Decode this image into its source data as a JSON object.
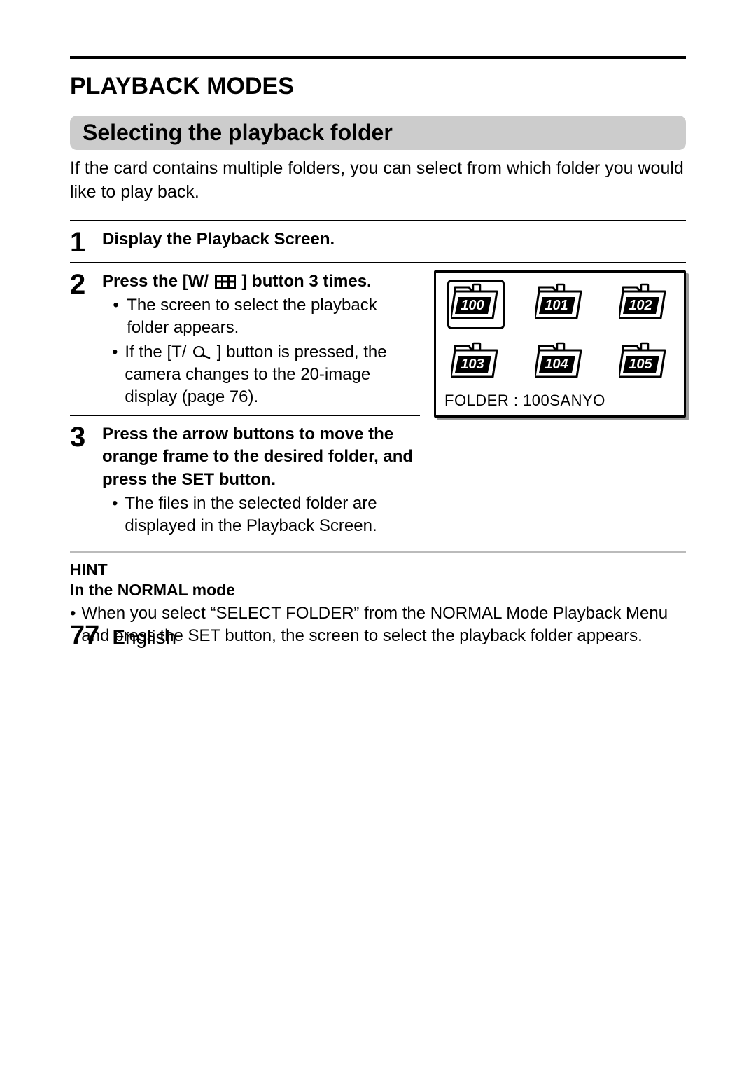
{
  "title": "PLAYBACK MODES",
  "subtitle": "Selecting the playback folder",
  "intro": "If the card contains multiple folders, you can select from which folder you would like to play back.",
  "steps": {
    "s1": {
      "num": "1",
      "head": "Display the Playback Screen."
    },
    "s2": {
      "num": "2",
      "head_pre": "Press the [W/",
      "head_post": "] button 3 times.",
      "b1": "The screen to select the playback folder appears.",
      "b2_pre": "If the [T/",
      "b2_post": "] button is pressed, the camera changes to the 20-image display  (page 76)."
    },
    "s3": {
      "num": "3",
      "head": "Press the arrow buttons to move the orange frame to the desired folder, and press the SET button.",
      "b1": "The files in the selected folder are displayed in the Playback Screen."
    }
  },
  "lcd": {
    "folders": [
      "100",
      "101",
      "102",
      "103",
      "104",
      "105"
    ],
    "selected_index": 0,
    "caption": "FOLDER : 100SANYO"
  },
  "hint": {
    "head": "HINT",
    "sub": "In the NORMAL mode",
    "body": "When you select “SELECT FOLDER” from the NORMAL Mode Playback Menu and press the SET button, the screen to select the playback folder appears."
  },
  "footer": {
    "page": "77",
    "lang": "English"
  },
  "colors": {
    "text": "#000000",
    "bg": "#ffffff",
    "subtitle_bg": "#cccccc",
    "rule_gray": "#bbbbbb",
    "lcd_shadow": "#999999"
  }
}
